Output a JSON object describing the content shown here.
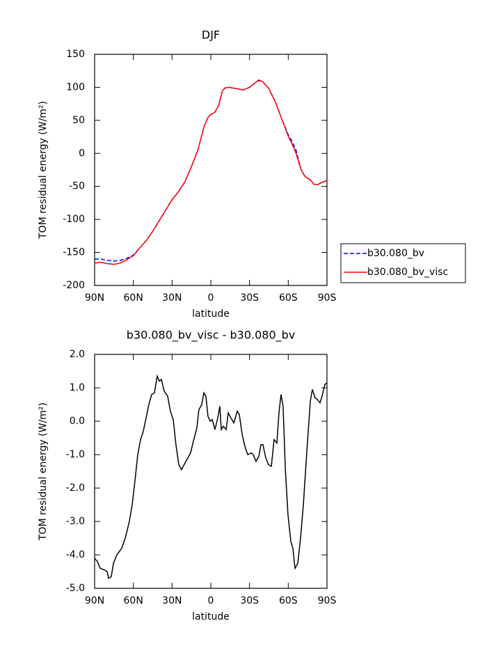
{
  "chart_data": [
    {
      "type": "line",
      "title": "DJF",
      "xlabel": "latitude",
      "ylabel": "TOM residual energy (W/m²)",
      "x": [
        90,
        85,
        80,
        75,
        70,
        65,
        60,
        55,
        50,
        45,
        40,
        35,
        30,
        25,
        20,
        15,
        10,
        5,
        2,
        0,
        -3,
        -6,
        -9,
        -11,
        -14,
        -20,
        -25,
        -30,
        -35,
        -37,
        -40,
        -45,
        -50,
        -55,
        -60,
        -63,
        -66,
        -70,
        -73,
        -77,
        -80,
        -83,
        -86,
        -90
      ],
      "series": [
        {
          "name": "b30.080_bv",
          "color": "#0000ff",
          "style": "dashed",
          "values": [
            -160,
            -160,
            -162,
            -163,
            -162,
            -159,
            -154,
            -143,
            -132,
            -118,
            -102,
            -86,
            -70,
            -58,
            -43,
            -20,
            5,
            42,
            55,
            59,
            62,
            72,
            95,
            99,
            100,
            98,
            96,
            100,
            108,
            111,
            109,
            98,
            78,
            52,
            28,
            18,
            5,
            -25,
            -35,
            -40,
            -47,
            -47,
            -44,
            -41
          ]
        },
        {
          "name": "b30.080_bv_visc",
          "color": "#ff0000",
          "style": "solid",
          "values": [
            -166,
            -165,
            -167,
            -168,
            -166,
            -161,
            -155,
            -143,
            -132,
            -118,
            -102,
            -86,
            -70,
            -58,
            -43,
            -20,
            5,
            42,
            55,
            59,
            62,
            72,
            95,
            99,
            100,
            98,
            96,
            100,
            108,
            110,
            109,
            98,
            78,
            52,
            26,
            14,
            0,
            -25,
            -35,
            -40,
            -47,
            -47,
            -44,
            -41
          ]
        }
      ],
      "xlim": [
        90,
        -90
      ],
      "xticks": [
        {
          "value": 90,
          "label": "90N"
        },
        {
          "value": 60,
          "label": "60N"
        },
        {
          "value": 30,
          "label": "30N"
        },
        0,
        {
          "value": -30,
          "label": "30S"
        },
        {
          "value": -60,
          "label": "60S"
        },
        {
          "value": -90,
          "label": "90S"
        }
      ],
      "ylim": [
        -200,
        150
      ],
      "yticks": [
        -200,
        -150,
        -100,
        -50,
        0,
        50,
        100,
        150
      ],
      "legend": "outside-right"
    },
    {
      "type": "line",
      "title": "b30.080_bv_visc - b30.080_bv",
      "xlabel": "latitude",
      "ylabel": "TOM residual energy (W/m²)",
      "color": "#000000",
      "x": [
        90,
        87.8,
        85.7,
        82.5,
        80.3,
        79.2,
        77.1,
        75.4,
        72.8,
        69.0,
        66.3,
        63.1,
        60.9,
        58.8,
        56.6,
        54.4,
        52.3,
        50.1,
        48.0,
        45.8,
        43.7,
        41.5,
        39.9,
        38.3,
        36.1,
        33.4,
        31.3,
        29.1,
        27.0,
        24.8,
        22.7,
        20.0,
        17.8,
        15.7,
        13.5,
        10.8,
        9.2,
        7.0,
        5.4,
        3.8,
        2.2,
        0.5,
        -1.1,
        -3.2,
        -5.4,
        -7.0,
        -8.1,
        -9.7,
        -11.9,
        -13.5,
        -15.6,
        -17.8,
        -20.5,
        -22.1,
        -24.3,
        -26.4,
        -28.6,
        -31.3,
        -32.9,
        -35.0,
        -37.2,
        -38.8,
        -40.4,
        -42.6,
        -44.7,
        -46.9,
        -49.0,
        -51.2,
        -52.8,
        -54.4,
        -56.0,
        -57.7,
        -59.8,
        -62.0,
        -63.6,
        -65.2,
        -67.4,
        -69.5,
        -71.7,
        -74.4,
        -77.1,
        -78.7,
        -80.8,
        -82.5,
        -84.6,
        -86.2,
        -88.4,
        -90
      ],
      "values": [
        -4.1,
        -4.2,
        -4.4,
        -4.45,
        -4.5,
        -4.7,
        -4.65,
        -4.25,
        -4.0,
        -3.8,
        -3.5,
        -3.0,
        -2.5,
        -1.8,
        -1.0,
        -0.55,
        -0.3,
        0.1,
        0.5,
        0.8,
        0.85,
        1.35,
        1.2,
        1.25,
        0.9,
        0.75,
        0.3,
        0.05,
        -0.7,
        -1.3,
        -1.45,
        -1.25,
        -1.1,
        -0.95,
        -0.6,
        -0.2,
        0.35,
        0.5,
        0.85,
        0.75,
        0.15,
        0.0,
        0.05,
        -0.25,
        0.1,
        0.45,
        -0.25,
        -0.15,
        -0.25,
        0.25,
        0.1,
        -0.05,
        0.3,
        0.2,
        -0.4,
        -0.75,
        -1.0,
        -0.95,
        -1.0,
        -1.2,
        -1.05,
        -0.7,
        -0.7,
        -1.1,
        -1.3,
        -1.35,
        -0.55,
        -0.65,
        0.25,
        0.8,
        0.45,
        -1.4,
        -2.8,
        -3.6,
        -3.8,
        -4.4,
        -4.25,
        -3.5,
        -2.5,
        -0.9,
        0.6,
        0.95,
        0.7,
        0.65,
        0.55,
        0.75,
        1.1,
        1.15
      ],
      "xlim": [
        90,
        -90
      ],
      "xticks": [
        {
          "value": 90,
          "label": "90N"
        },
        {
          "value": 60,
          "label": "60N"
        },
        {
          "value": 30,
          "label": "30N"
        },
        0,
        {
          "value": -30,
          "label": "30S"
        },
        {
          "value": -60,
          "label": "60S"
        },
        {
          "value": -90,
          "label": "90S"
        }
      ],
      "ylim": [
        -5,
        2
      ],
      "yticks": [
        {
          "value": -5,
          "label": "-5.0"
        },
        {
          "value": -4,
          "label": "-4.0"
        },
        {
          "value": -3,
          "label": "-3.0"
        },
        {
          "value": -2,
          "label": "-2.0"
        },
        {
          "value": -1,
          "label": "-1.0"
        },
        {
          "value": 0,
          "label": "0.0"
        },
        {
          "value": 1,
          "label": "1.0"
        },
        {
          "value": 2,
          "label": "2.0"
        }
      ]
    }
  ]
}
